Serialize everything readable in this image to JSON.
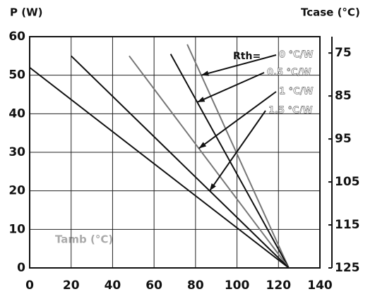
{
  "chart_data": {
    "type": "line",
    "title": "P (W)",
    "y2_title": "Tcase (°C)",
    "x_title": "Tamb (°C)",
    "annotation": "Rth=",
    "xlim": [
      0,
      140
    ],
    "xticks": [
      0,
      20,
      40,
      60,
      80,
      100,
      120,
      140
    ],
    "ylim": [
      0,
      60
    ],
    "yticks": [
      0,
      10,
      20,
      30,
      40,
      50,
      60
    ],
    "y2lim": [
      125,
      71.2
    ],
    "y2ticks": [
      75,
      85,
      95,
      105,
      115,
      125
    ],
    "grid": true,
    "series": [
      {
        "name": "0 °C/W",
        "color": "#777777",
        "x": [
          76,
          125
        ],
        "values": [
          58,
          0
        ]
      },
      {
        "name": "0.5 °C/W",
        "color": "#111111",
        "x": [
          68,
          125
        ],
        "values": [
          55.5,
          0
        ]
      },
      {
        "name": "1 °C/W",
        "color": "#777777",
        "x": [
          48,
          125
        ],
        "values": [
          55,
          0
        ]
      },
      {
        "name": "1.5 °C/W",
        "color": "#111111",
        "x": [
          20,
          125
        ],
        "values": [
          55,
          0
        ]
      },
      {
        "color": "#111111",
        "x": [
          0,
          125
        ],
        "values": [
          52,
          0
        ]
      }
    ]
  }
}
